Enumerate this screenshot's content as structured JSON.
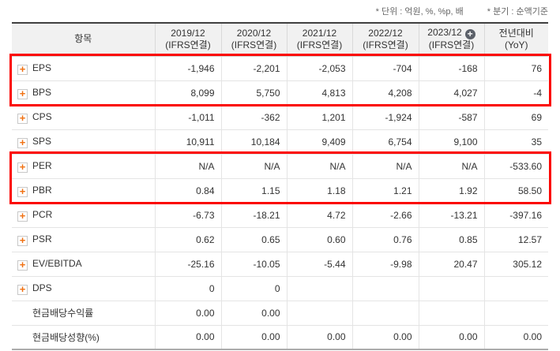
{
  "legend": {
    "unit": "* 단위 : 억원, %, %p, 배",
    "basis": "* 분기 : 순액기준"
  },
  "colors": {
    "negative_value": "#e01a22",
    "highlight_border": "#fb0300",
    "expand_plus": "#f07011",
    "header_plus_circle": "#5b6069",
    "header_bg": "#f1f1f1"
  },
  "table": {
    "item_header": "항목",
    "columns": [
      {
        "line1": "2019/12",
        "line2": "(IFRS연결)"
      },
      {
        "line1": "2020/12",
        "line2": "(IFRS연결)"
      },
      {
        "line1": "2021/12",
        "line2": "(IFRS연결)"
      },
      {
        "line1": "2022/12",
        "line2": "(IFRS연결)"
      },
      {
        "line1": "2023/12",
        "line2": "(IFRS연결)",
        "plus_icon": "add-column"
      },
      {
        "line1": "전년대비",
        "line2": "(YoY)"
      }
    ],
    "rows": [
      {
        "label": "EPS",
        "expandable": true,
        "highlighted": true,
        "values": [
          "-1,946",
          "-2,201",
          "-2,053",
          "-704",
          "-168",
          "76"
        ]
      },
      {
        "label": "BPS",
        "expandable": true,
        "highlighted": true,
        "values": [
          "8,099",
          "5,750",
          "4,813",
          "4,208",
          "4,027",
          "-4"
        ]
      },
      {
        "label": "CPS",
        "expandable": true,
        "highlighted": false,
        "values": [
          "-1,011",
          "-362",
          "1,201",
          "-1,924",
          "-587",
          "69"
        ]
      },
      {
        "label": "SPS",
        "expandable": true,
        "highlighted": false,
        "values": [
          "10,911",
          "10,184",
          "9,409",
          "6,754",
          "9,100",
          "35"
        ]
      },
      {
        "label": "PER",
        "expandable": true,
        "highlighted": true,
        "values": [
          "N/A",
          "N/A",
          "N/A",
          "N/A",
          "N/A",
          "-533.60"
        ]
      },
      {
        "label": "PBR",
        "expandable": true,
        "highlighted": true,
        "values": [
          "0.84",
          "1.15",
          "1.18",
          "1.21",
          "1.92",
          "58.50"
        ]
      },
      {
        "label": "PCR",
        "expandable": true,
        "highlighted": false,
        "values": [
          "-6.73",
          "-18.21",
          "4.72",
          "-2.66",
          "-13.21",
          "-397.16"
        ]
      },
      {
        "label": "PSR",
        "expandable": true,
        "highlighted": false,
        "values": [
          "0.62",
          "0.65",
          "0.60",
          "0.76",
          "0.85",
          "12.57"
        ]
      },
      {
        "label": "EV/EBITDA",
        "expandable": true,
        "highlighted": false,
        "values": [
          "-25.16",
          "-10.05",
          "-5.44",
          "-9.98",
          "20.47",
          "305.12"
        ]
      },
      {
        "label": "DPS",
        "expandable": true,
        "highlighted": false,
        "values": [
          "0",
          "0",
          "",
          "",
          "",
          ""
        ]
      },
      {
        "label": "현금배당수익률",
        "expandable": false,
        "highlighted": false,
        "values": [
          "0.00",
          "0.00",
          "",
          "",
          "",
          ""
        ]
      },
      {
        "label": "현금배당성향(%)",
        "expandable": false,
        "highlighted": false,
        "values": [
          "0.00",
          "0.00",
          "0.00",
          "0.00",
          "0.00",
          "0.00"
        ]
      }
    ]
  }
}
